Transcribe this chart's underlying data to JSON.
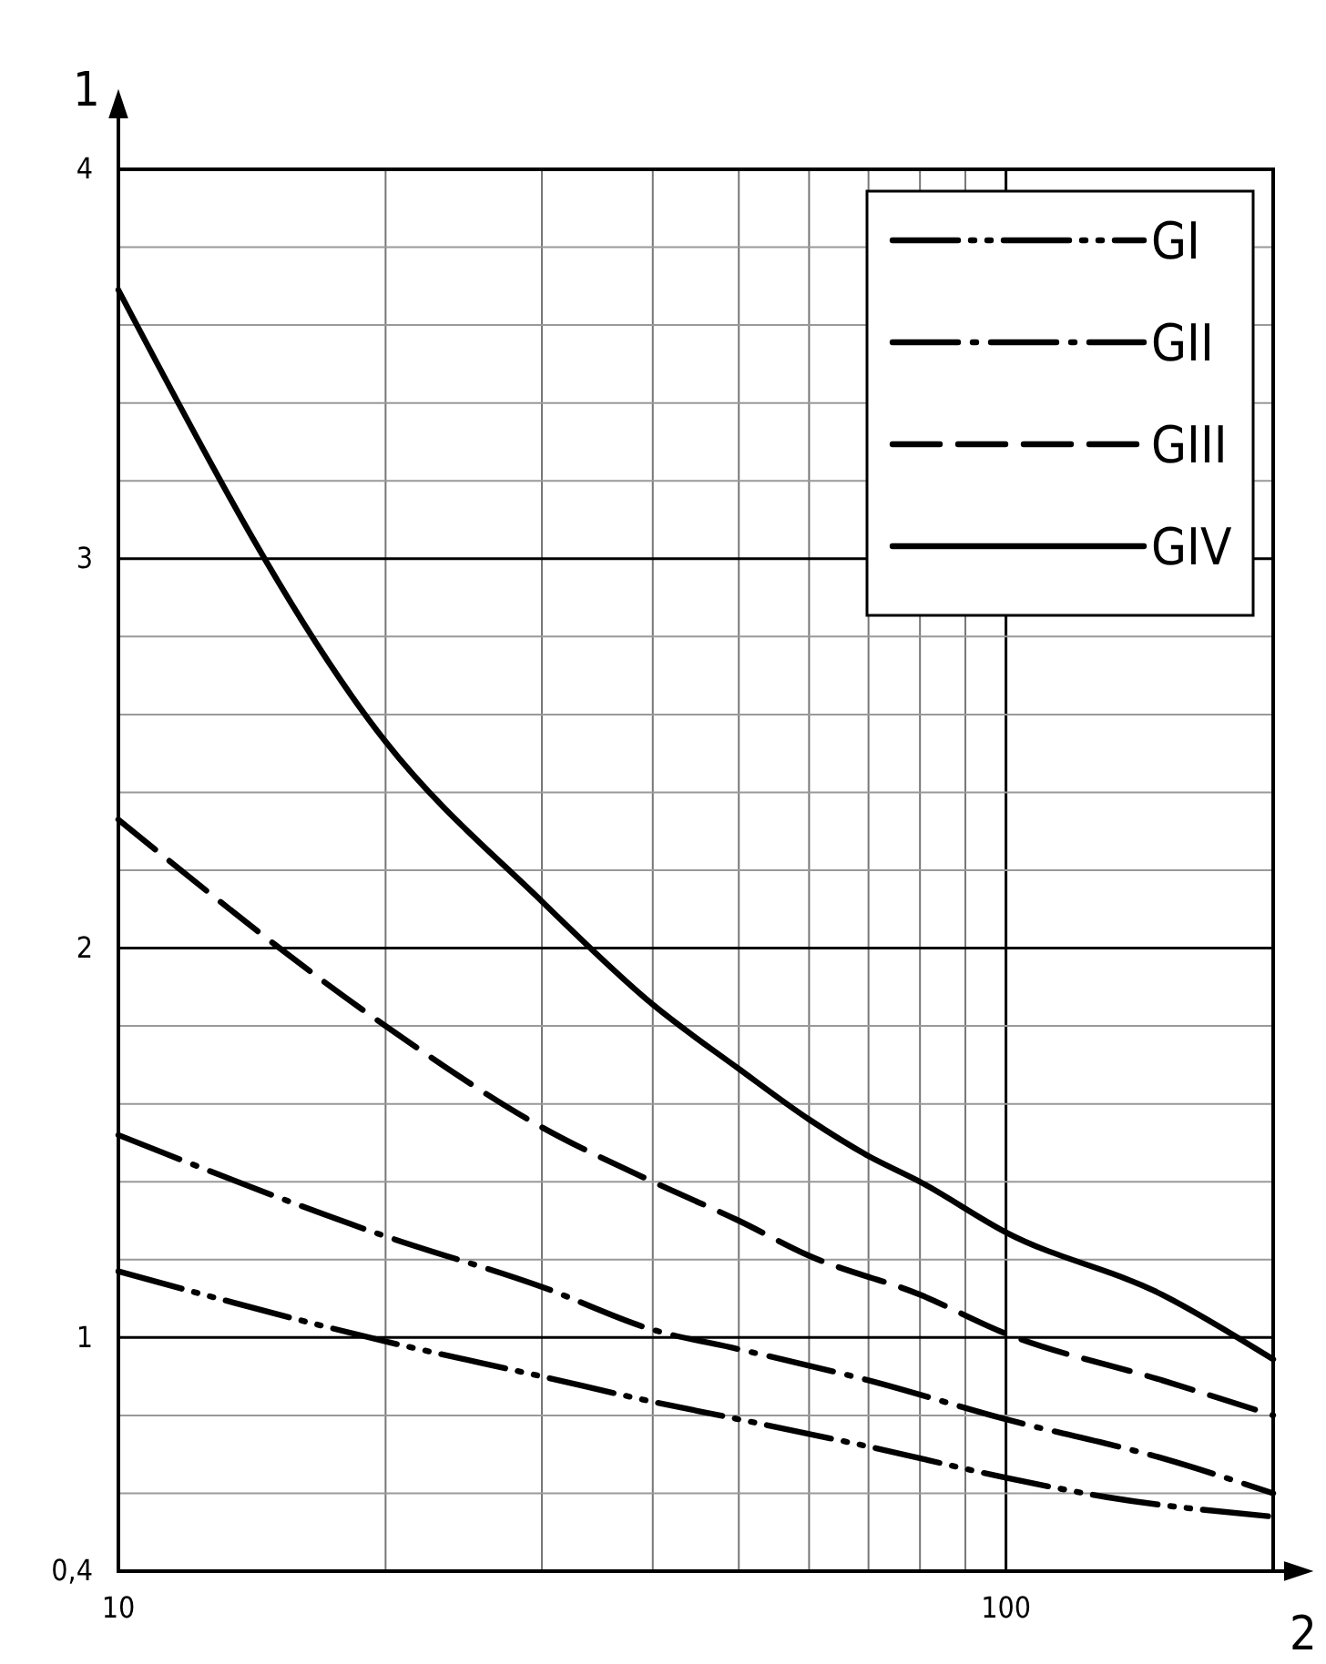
{
  "chart_data": {
    "type": "line",
    "xlabel": "2",
    "ylabel": "1",
    "log": "x",
    "grid": true,
    "legend": "top right",
    "marker": "none",
    "xlim": [
      10,
      200
    ],
    "xticks": [
      10,
      {
        "value": 20,
        "label": null
      },
      {
        "value": 30,
        "label": null
      },
      {
        "value": 40,
        "label": null
      },
      {
        "value": 50,
        "label": null
      },
      {
        "value": 60,
        "label": null
      },
      {
        "value": 70,
        "label": null
      },
      {
        "value": 80,
        "label": null
      },
      {
        "value": 90,
        "label": null
      },
      100
    ],
    "ylim": [
      0.4,
      4
    ],
    "yticks": [
      {
        "value": 0.4,
        "label": "0,4"
      },
      {
        "value": 0.6,
        "label": null
      },
      {
        "value": 0.8,
        "label": null
      },
      1,
      {
        "value": 1.2,
        "label": null
      },
      {
        "value": 1.4,
        "label": null
      },
      {
        "value": 1.6,
        "label": null
      },
      {
        "value": 1.8,
        "label": null
      },
      2,
      {
        "value": 2.2,
        "label": null
      },
      {
        "value": 2.4,
        "label": null
      },
      {
        "value": 2.6,
        "label": null
      },
      {
        "value": 2.8,
        "label": null
      },
      3,
      {
        "value": 3.2,
        "label": null
      },
      {
        "value": 3.4,
        "label": null
      },
      {
        "value": 3.6,
        "label": null
      },
      {
        "value": 3.8,
        "label": null
      },
      4
    ],
    "series": [
      {
        "name": "GI",
        "color": "#000000",
        "line_style": "dash-dot-dot",
        "x": [
          10,
          20,
          30,
          40,
          50,
          70,
          100,
          130,
          200
        ],
        "values": [
          1.17,
          0.99,
          0.9,
          0.835,
          0.79,
          0.72,
          0.64,
          0.59,
          0.54
        ]
      },
      {
        "name": "GII",
        "color": "#000000",
        "line_style": "dash-dot",
        "x": [
          10,
          20,
          30,
          40,
          50,
          70,
          100,
          150,
          200
        ],
        "values": [
          1.52,
          1.26,
          1.13,
          1.02,
          0.97,
          0.89,
          0.79,
          0.69,
          0.6
        ]
      },
      {
        "name": "GIII",
        "color": "#000000",
        "line_style": "dashed",
        "x": [
          10,
          20,
          30,
          40,
          50,
          60,
          80,
          100,
          150,
          200
        ],
        "values": [
          2.33,
          1.8,
          1.54,
          1.4,
          1.3,
          1.21,
          1.11,
          1.01,
          0.89,
          0.8
        ]
      },
      {
        "name": "GIV",
        "color": "#000000",
        "line_style": "solid",
        "x": [
          10,
          20,
          30,
          40,
          50,
          60,
          70,
          80,
          100,
          150,
          200
        ],
        "values": [
          3.69,
          2.53,
          2.12,
          1.855,
          1.69,
          1.56,
          1.466,
          1.4,
          1.27,
          1.11,
          0.944
        ]
      }
    ]
  }
}
